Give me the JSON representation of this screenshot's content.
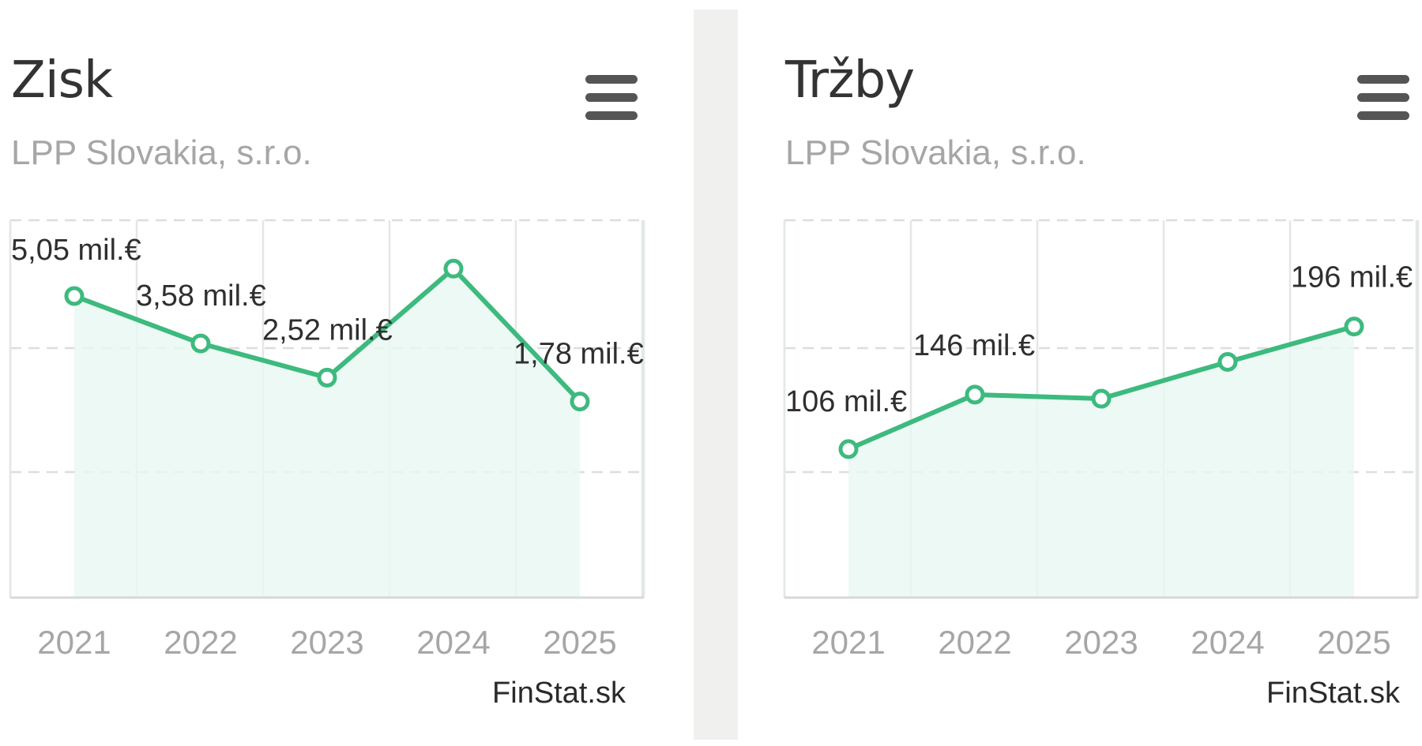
{
  "charts": [
    {
      "title": "Zisk",
      "subtitle": "LPP Slovakia, s.r.o.",
      "credit": "FinStat.sk",
      "menu_icon": "hamburger-menu-icon"
    },
    {
      "title": "Tržby",
      "subtitle": "LPP Slovakia, s.r.o.",
      "credit": "FinStat.sk",
      "menu_icon": "hamburger-menu-icon"
    }
  ],
  "colors": {
    "line": "#3dba7e",
    "area": "#e9f7f1",
    "divider": "#f0f0ef"
  },
  "chart_data": [
    {
      "type": "area",
      "title": "Zisk",
      "categories": [
        "2021",
        "2022",
        "2023",
        "2024",
        "2025"
      ],
      "series": [
        {
          "values": [
            5.05,
            3.58,
            2.52,
            5.9,
            1.78
          ],
          "data_labels": [
            "5,05 mil.€",
            "3,58 mil.€",
            "2,52 mil.€",
            "",
            "1,78 mil.€"
          ]
        }
      ],
      "ylim": [
        -4.3,
        7.4
      ],
      "grid": true,
      "legend": "none"
    },
    {
      "type": "area",
      "title": "Tržby",
      "categories": [
        "2021",
        "2022",
        "2023",
        "2024",
        "2025"
      ],
      "series": [
        {
          "values": [
            106,
            146,
            143,
            170,
            196
          ],
          "data_labels": [
            "106 mil.€",
            "146 mil.€",
            "",
            "",
            "196 mil.€"
          ]
        }
      ],
      "ylim": [
        -3,
        274
      ],
      "grid": true,
      "legend": "none"
    }
  ]
}
